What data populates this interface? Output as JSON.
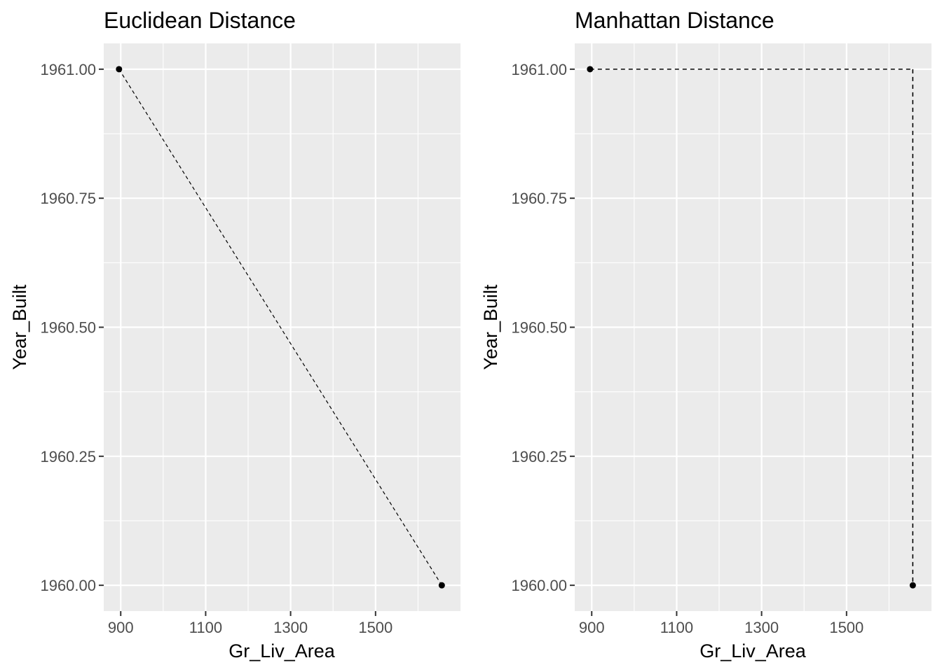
{
  "chart_data": [
    {
      "type": "scatter",
      "title": "Euclidean Distance",
      "xlabel": "Gr_Liv_Area",
      "ylabel": "Year_Built",
      "xlim": [
        860,
        1700
      ],
      "ylim": [
        1959.95,
        1961.05
      ],
      "x_ticks": [
        900,
        1100,
        1300,
        1500
      ],
      "x_tick_labels": [
        "900",
        "1100",
        "1300",
        "1500"
      ],
      "y_ticks": [
        1960.0,
        1960.25,
        1960.5,
        1960.75,
        1961.0
      ],
      "y_tick_labels": [
        "1960.00",
        "1960.25",
        "1960.50",
        "1960.75",
        "1961.00"
      ],
      "grid": true,
      "points": [
        {
          "x": 896,
          "y": 1961
        },
        {
          "x": 1656,
          "y": 1960
        }
      ],
      "segments": [
        {
          "x1": 896,
          "y1": 1961,
          "x2": 1656,
          "y2": 1960,
          "style": "dashed"
        }
      ]
    },
    {
      "type": "scatter",
      "title": "Manhattan Distance",
      "xlabel": "Gr_Liv_Area",
      "ylabel": "Year_Built",
      "xlim": [
        860,
        1700
      ],
      "ylim": [
        1959.95,
        1961.05
      ],
      "x_ticks": [
        900,
        1100,
        1300,
        1500
      ],
      "x_tick_labels": [
        "900",
        "1100",
        "1300",
        "1500"
      ],
      "y_ticks": [
        1960.0,
        1960.25,
        1960.5,
        1960.75,
        1961.0
      ],
      "y_tick_labels": [
        "1960.00",
        "1960.25",
        "1960.50",
        "1960.75",
        "1961.00"
      ],
      "grid": true,
      "points": [
        {
          "x": 896,
          "y": 1961
        },
        {
          "x": 1656,
          "y": 1960
        }
      ],
      "segments": [
        {
          "x1": 896,
          "y1": 1961,
          "x2": 1656,
          "y2": 1961,
          "style": "dashed"
        },
        {
          "x1": 1656,
          "y1": 1961,
          "x2": 1656,
          "y2": 1960,
          "style": "dashed"
        }
      ]
    }
  ]
}
